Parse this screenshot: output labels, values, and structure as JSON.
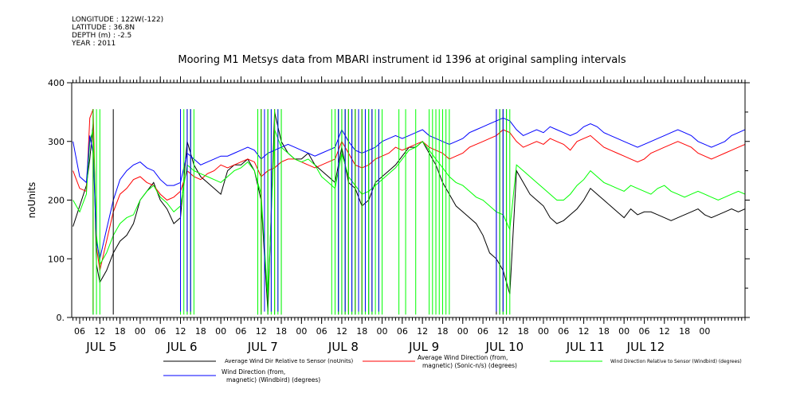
{
  "metadata": {
    "longitude": "LONGITUDE : 122W(-122)",
    "latitude": "LATITUDE : 36.8N",
    "depth": "DEPTH (m) : -2.5",
    "year": "YEAR : 2011"
  },
  "chart_data": {
    "type": "line",
    "title": "Mooring M1 Metsys data from MBARI instrument id 1396 at original sampling intervals",
    "ylabel": "noUnits",
    "xlabel": "",
    "ylim": [
      0,
      400
    ],
    "xlim_hours": [
      0,
      198
    ],
    "y_ticks": [
      0,
      100,
      200,
      300,
      400
    ],
    "y_tick_labels": [
      "0.",
      "100",
      "200",
      "300",
      "400"
    ],
    "x_ticks": [
      {
        "h": 0,
        "label": "06"
      },
      {
        "h": 6,
        "label": "12"
      },
      {
        "h": 12,
        "label": "18"
      },
      {
        "h": 18,
        "label": "00"
      },
      {
        "h": 24,
        "label": "06"
      },
      {
        "h": 30,
        "label": "12"
      },
      {
        "h": 36,
        "label": "18"
      },
      {
        "h": 42,
        "label": "00"
      },
      {
        "h": 48,
        "label": "06"
      },
      {
        "h": 54,
        "label": "12"
      },
      {
        "h": 60,
        "label": "18"
      },
      {
        "h": 66,
        "label": "00"
      },
      {
        "h": 72,
        "label": "06"
      },
      {
        "h": 78,
        "label": "12"
      },
      {
        "h": 84,
        "label": "18"
      },
      {
        "h": 90,
        "label": "00"
      },
      {
        "h": 96,
        "label": "06"
      },
      {
        "h": 102,
        "label": "12"
      },
      {
        "h": 108,
        "label": "18"
      },
      {
        "h": 114,
        "label": "00"
      },
      {
        "h": 120,
        "label": "06"
      },
      {
        "h": 126,
        "label": "12"
      },
      {
        "h": 132,
        "label": "18"
      },
      {
        "h": 138,
        "label": "00"
      },
      {
        "h": 144,
        "label": "06"
      },
      {
        "h": 150,
        "label": "12"
      },
      {
        "h": 156,
        "label": "18"
      },
      {
        "h": 162,
        "label": "00"
      },
      {
        "h": 168,
        "label": "06"
      },
      {
        "h": 174,
        "label": "12"
      },
      {
        "h": 180,
        "label": "18"
      },
      {
        "h": 186,
        "label": "00"
      }
    ],
    "day_labels": [
      {
        "h": 6,
        "label": "JUL  5"
      },
      {
        "h": 30,
        "label": "JUL  6"
      },
      {
        "h": 54,
        "label": "JUL  7"
      },
      {
        "h": 78,
        "label": "JUL  8"
      },
      {
        "h": 102,
        "label": "JUL  9"
      },
      {
        "h": 126,
        "label": "JUL 10"
      },
      {
        "h": 150,
        "label": "JUL 11"
      },
      {
        "h": 168,
        "label": "JUL 12"
      }
    ],
    "series": [
      {
        "name": "Average Wind Dir Relative to Sensor (noUnits)",
        "color": "#000000",
        "x": [
          -2,
          0,
          2,
          3,
          4,
          5,
          6,
          8,
          10,
          12,
          14,
          16,
          18,
          20,
          22,
          24,
          26,
          28,
          30,
          32,
          34,
          36,
          38,
          40,
          42,
          44,
          46,
          48,
          50,
          52,
          54,
          56,
          58,
          60,
          62,
          64,
          66,
          68,
          70,
          72,
          74,
          76,
          78,
          80,
          82,
          84,
          86,
          88,
          90,
          92,
          94,
          96,
          98,
          100,
          102,
          104,
          106,
          108,
          110,
          112,
          114,
          116,
          118,
          120,
          122,
          124,
          126,
          127,
          128,
          130,
          132,
          134,
          136,
          138,
          140,
          142,
          144,
          146,
          148,
          150,
          152,
          154,
          156,
          158,
          160,
          162,
          164,
          166,
          168,
          170,
          172,
          174,
          176,
          178,
          180,
          182,
          184,
          186,
          188,
          190,
          192,
          194,
          196,
          198
        ],
        "y": [
          155,
          190,
          225,
          270,
          330,
          90,
          60,
          80,
          110,
          130,
          140,
          160,
          200,
          215,
          230,
          200,
          185,
          160,
          170,
          300,
          260,
          240,
          230,
          220,
          210,
          250,
          260,
          260,
          270,
          250,
          200,
          10,
          350,
          300,
          280,
          270,
          270,
          280,
          260,
          250,
          240,
          230,
          290,
          230,
          220,
          190,
          200,
          230,
          240,
          250,
          260,
          275,
          290,
          290,
          300,
          280,
          260,
          230,
          210,
          190,
          180,
          170,
          160,
          140,
          110,
          100,
          80,
          60,
          40,
          250,
          230,
          210,
          200,
          190,
          170,
          160,
          165,
          175,
          185,
          200,
          220,
          210,
          200,
          190,
          180,
          170,
          185,
          175,
          180,
          180,
          175,
          170,
          165,
          170,
          175,
          180,
          185,
          175,
          170,
          175,
          180,
          185,
          180,
          185
        ]
      },
      {
        "name": "Average Wind Direction (from, magnetic) (Sonic-n/s) (degrees)",
        "color": "#ff0000",
        "x": [
          -2,
          0,
          2,
          3,
          4,
          5,
          6,
          8,
          10,
          12,
          14,
          16,
          18,
          20,
          22,
          24,
          26,
          28,
          30,
          32,
          34,
          36,
          38,
          40,
          42,
          44,
          46,
          48,
          50,
          52,
          54,
          56,
          58,
          60,
          62,
          64,
          66,
          68,
          70,
          72,
          74,
          76,
          78,
          80,
          82,
          84,
          86,
          88,
          90,
          92,
          94,
          96,
          98,
          100,
          102,
          104,
          106,
          108,
          110,
          112,
          114,
          116,
          118,
          120,
          122,
          124,
          126,
          128,
          130,
          132,
          134,
          136,
          138,
          140,
          142,
          144,
          146,
          148,
          150,
          152,
          154,
          156,
          158,
          160,
          162,
          164,
          166,
          168,
          170,
          172,
          174,
          176,
          178,
          180,
          182,
          184,
          186,
          188,
          190,
          192,
          194,
          196,
          198
        ],
        "y": [
          250,
          220,
          215,
          340,
          355,
          120,
          80,
          130,
          180,
          210,
          220,
          235,
          240,
          230,
          225,
          210,
          200,
          205,
          215,
          250,
          240,
          235,
          245,
          250,
          260,
          255,
          260,
          265,
          270,
          265,
          240,
          250,
          255,
          265,
          270,
          270,
          265,
          260,
          255,
          260,
          265,
          270,
          300,
          280,
          260,
          255,
          260,
          270,
          275,
          280,
          290,
          285,
          290,
          295,
          300,
          290,
          285,
          280,
          270,
          275,
          280,
          290,
          295,
          300,
          305,
          310,
          320,
          315,
          300,
          290,
          295,
          300,
          295,
          305,
          300,
          295,
          285,
          300,
          305,
          310,
          300,
          290,
          285,
          280,
          275,
          270,
          265,
          270,
          280,
          285,
          290,
          295,
          300,
          295,
          290,
          280,
          275,
          270,
          275,
          280,
          285,
          290,
          295
        ]
      },
      {
        "name": "Wind Direction Relative to Sensor (Windbird) (degrees)",
        "color": "#00ff00",
        "x": [
          -2,
          0,
          2,
          3,
          4,
          5,
          6,
          8,
          10,
          12,
          14,
          16,
          18,
          20,
          22,
          24,
          26,
          28,
          30,
          32,
          34,
          36,
          38,
          40,
          42,
          44,
          46,
          48,
          50,
          52,
          54,
          56,
          58,
          60,
          62,
          64,
          66,
          68,
          70,
          72,
          74,
          76,
          78,
          80,
          82,
          84,
          86,
          88,
          90,
          92,
          94,
          96,
          98,
          100,
          102,
          104,
          106,
          108,
          110,
          112,
          114,
          116,
          118,
          120,
          122,
          124,
          126,
          128,
          130,
          132,
          134,
          136,
          138,
          140,
          142,
          144,
          146,
          148,
          150,
          152,
          154,
          156,
          158,
          160,
          162,
          164,
          166,
          168,
          170,
          172,
          174,
          176,
          178,
          180,
          182,
          184,
          186,
          188,
          190,
          192,
          194,
          196,
          198
        ],
        "y": [
          200,
          180,
          210,
          300,
          320,
          140,
          90,
          110,
          140,
          160,
          170,
          175,
          200,
          215,
          225,
          205,
          195,
          180,
          190,
          260,
          250,
          245,
          240,
          235,
          230,
          240,
          250,
          255,
          265,
          250,
          210,
          30,
          320,
          290,
          280,
          270,
          265,
          270,
          260,
          240,
          230,
          220,
          280,
          240,
          225,
          210,
          215,
          225,
          235,
          245,
          255,
          270,
          285,
          290,
          300,
          285,
          270,
          255,
          240,
          230,
          225,
          215,
          205,
          200,
          190,
          180,
          175,
          150,
          260,
          250,
          240,
          230,
          220,
          210,
          200,
          200,
          210,
          225,
          235,
          250,
          240,
          230,
          225,
          220,
          215,
          225,
          220,
          215,
          210,
          220,
          225,
          215,
          210,
          205,
          210,
          215,
          210,
          205,
          200,
          205,
          210,
          215,
          210
        ]
      },
      {
        "name": "Wind Direction (from, magnetic) (Windbird) (degrees)",
        "color": "#0000ff",
        "x": [
          -2,
          0,
          2,
          3,
          4,
          5,
          6,
          8,
          10,
          12,
          14,
          16,
          18,
          20,
          22,
          24,
          26,
          28,
          30,
          32,
          34,
          36,
          38,
          40,
          42,
          44,
          46,
          48,
          50,
          52,
          54,
          56,
          58,
          60,
          62,
          64,
          66,
          68,
          70,
          72,
          74,
          76,
          78,
          80,
          82,
          84,
          86,
          88,
          90,
          92,
          94,
          96,
          98,
          100,
          102,
          104,
          106,
          108,
          110,
          112,
          114,
          116,
          118,
          120,
          122,
          124,
          126,
          128,
          130,
          132,
          134,
          136,
          138,
          140,
          142,
          144,
          146,
          148,
          150,
          152,
          154,
          156,
          158,
          160,
          162,
          164,
          166,
          168,
          170,
          172,
          174,
          176,
          178,
          180,
          182,
          184,
          186,
          188,
          190,
          192,
          194,
          196,
          198
        ],
        "y": [
          300,
          240,
          230,
          310,
          280,
          130,
          100,
          150,
          200,
          235,
          250,
          260,
          265,
          255,
          250,
          235,
          225,
          225,
          230,
          280,
          270,
          260,
          265,
          270,
          275,
          275,
          280,
          285,
          290,
          285,
          270,
          280,
          285,
          290,
          295,
          290,
          285,
          280,
          275,
          280,
          285,
          290,
          320,
          300,
          285,
          280,
          285,
          290,
          300,
          305,
          310,
          305,
          310,
          315,
          320,
          310,
          305,
          300,
          295,
          300,
          305,
          315,
          320,
          325,
          330,
          335,
          340,
          335,
          320,
          310,
          315,
          320,
          315,
          325,
          320,
          315,
          310,
          315,
          325,
          330,
          325,
          315,
          310,
          305,
          300,
          295,
          290,
          295,
          300,
          305,
          310,
          315,
          320,
          315,
          310,
          300,
          295,
          290,
          295,
          300,
          310,
          315,
          320
        ]
      }
    ],
    "spikes": [
      {
        "series": 0,
        "hours": [
          4,
          10,
          30,
          32,
          33,
          53,
          54,
          56,
          58,
          60,
          76,
          77,
          78,
          79,
          80,
          81,
          82,
          84,
          86,
          87,
          124,
          125,
          126,
          127
        ],
        "low": 5,
        "high": 355
      },
      {
        "series": 1,
        "hours": [
          4,
          32,
          54,
          58,
          80,
          82,
          84,
          87,
          126
        ],
        "low": 10,
        "high": 355
      },
      {
        "series": 2,
        "hours": [
          4,
          5,
          6,
          30,
          31,
          32,
          33,
          34,
          53,
          54,
          56,
          57,
          58,
          59,
          60,
          75,
          76,
          77,
          78,
          79,
          80,
          81,
          82,
          83,
          84,
          85,
          86,
          87,
          88,
          89,
          90,
          95,
          97,
          100,
          104,
          105,
          106,
          107,
          108,
          109,
          110,
          125,
          126,
          127,
          128
        ],
        "low": 5,
        "high": 355
      },
      {
        "series": 3,
        "hours": [
          30,
          32,
          33,
          55,
          57,
          59,
          77,
          79,
          81,
          83,
          85,
          87,
          89,
          124,
          126
        ],
        "low": 10,
        "high": 355
      }
    ],
    "legend": [
      {
        "label": "Average Wind Dir Relative to Sensor (noUnits)",
        "color": "#000000"
      },
      {
        "label": "Average Wind Direction (from,",
        "label2": "magnetic) (Sonic-n/s) (degrees)",
        "color": "#ff0000"
      },
      {
        "label": "Wind Direction Relative to Sensor (Windbird) (degrees)",
        "color": "#00ff00"
      },
      {
        "label": "Wind Direction (from,",
        "label2": "magnetic) (Windbird) (degrees)",
        "color": "#0000ff"
      }
    ],
    "legend_position": "bottom",
    "grid": false
  }
}
